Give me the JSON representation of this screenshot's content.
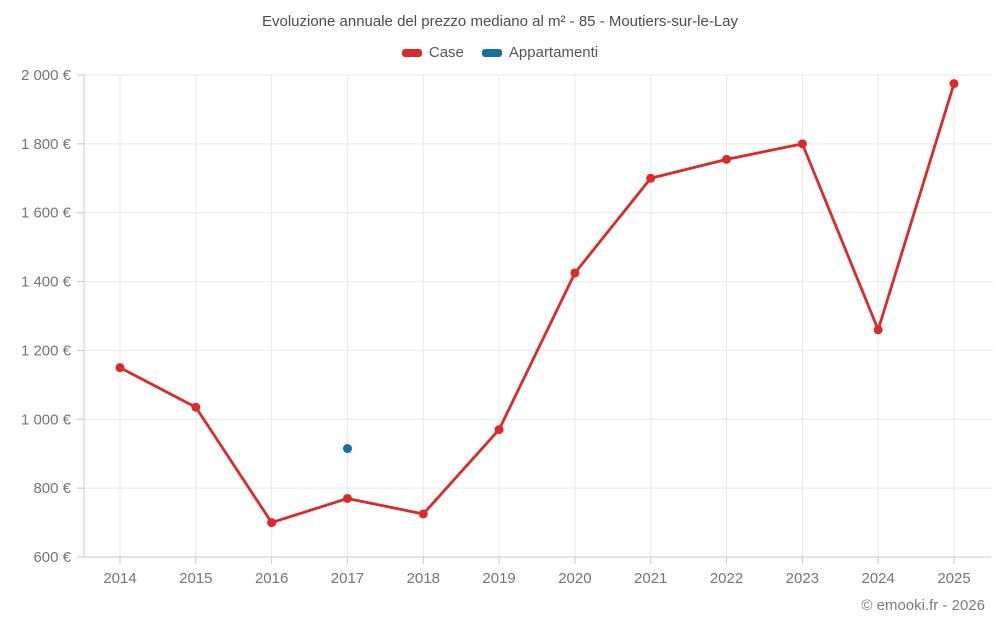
{
  "title": "Evoluzione annuale del prezzo mediano al m² - 85 - Moutiers-sur-le-Lay",
  "footer": "© emooki.fr - 2026",
  "colors": {
    "case_red": "#db2a2a",
    "appartamenti_blue": "#1271a6",
    "grid": "#e9e9e9",
    "axis": "#c9c9c9",
    "tick_label": "#757575",
    "title_text": "#4c4c4c"
  },
  "chart_data": {
    "type": "line",
    "title": "Evoluzione annuale del prezzo mediano al m² - 85 - Moutiers-sur-le-Lay",
    "x": [
      2014,
      2015,
      2016,
      2017,
      2018,
      2019,
      2020,
      2021,
      2022,
      2023,
      2024,
      2025
    ],
    "series": [
      {
        "name": "Case",
        "color": "#db2a2a",
        "values": [
          1150,
          1035,
          700,
          770,
          725,
          970,
          1425,
          1700,
          1755,
          1800,
          1260,
          1975
        ]
      },
      {
        "name": "Appartamenti",
        "color": "#1271a6",
        "values": [
          null,
          null,
          null,
          915,
          null,
          null,
          null,
          null,
          null,
          null,
          null,
          null
        ]
      }
    ],
    "yticks": [
      600,
      800,
      1000,
      1200,
      1400,
      1600,
      1800,
      2000
    ],
    "ylim": [
      600,
      2000
    ],
    "y_unit": "€",
    "grid": true,
    "legend_position": "top"
  }
}
